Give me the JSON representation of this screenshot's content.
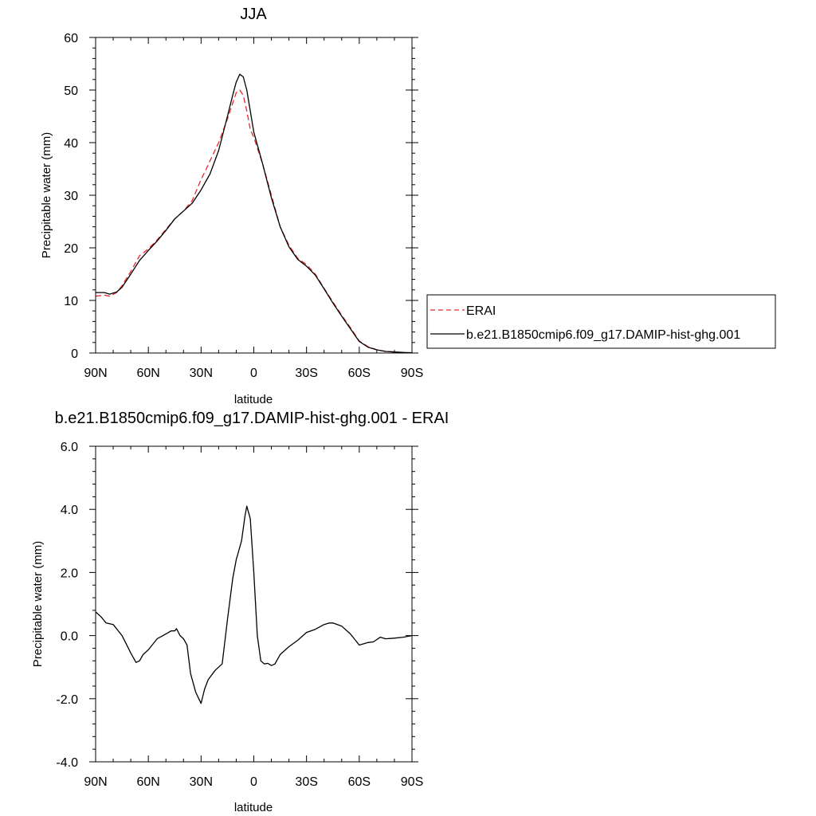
{
  "chart_data": [
    {
      "type": "line",
      "title": "JJA",
      "xlabel": "latitude",
      "ylabel": "Precipitable water (mm)",
      "xlim": [
        90,
        -90
      ],
      "ylim": [
        0,
        60
      ],
      "xticks": [
        90,
        60,
        30,
        0,
        -30,
        -60,
        -90
      ],
      "xtick_labels": [
        "90N",
        "60N",
        "30N",
        "0",
        "30S",
        "60S",
        "90S"
      ],
      "yticks": [
        0,
        10,
        20,
        30,
        40,
        50,
        60
      ],
      "ytick_labels": [
        "0",
        "10",
        "20",
        "30",
        "40",
        "50",
        "60"
      ],
      "legend": "right",
      "series": [
        {
          "name": "ERAI",
          "color": "#e8262b",
          "dash": "dashed",
          "x": [
            90,
            85,
            82,
            78,
            75,
            70,
            65,
            60,
            55,
            50,
            45,
            40,
            35,
            30,
            27,
            25,
            20,
            15,
            12,
            10,
            8,
            6,
            4,
            2,
            0,
            -5,
            -10,
            -15,
            -20,
            -25,
            -30,
            -35,
            -40,
            -45,
            -50,
            -55,
            -60,
            -65,
            -70,
            -75,
            -80,
            -85,
            -90
          ],
          "values": [
            10.8,
            11.0,
            10.8,
            11.5,
            12.8,
            15.5,
            18.5,
            19.8,
            21.5,
            23.5,
            25.5,
            27.0,
            29.0,
            33.0,
            35.0,
            36.5,
            40.0,
            44.5,
            47.5,
            49.5,
            50.0,
            49.0,
            46.0,
            42.5,
            41.0,
            36.0,
            30.0,
            24.0,
            20.5,
            18.0,
            16.8,
            15.0,
            12.3,
            9.7,
            7.2,
            4.8,
            2.3,
            1.2,
            0.6,
            0.3,
            0.2,
            0.1,
            0.05
          ]
        },
        {
          "name": "b.e21.B1850cmip6.f09_g17.DAMIP-hist-ghg.001",
          "color": "#000000",
          "dash": "solid",
          "x": [
            90,
            85,
            82,
            78,
            75,
            70,
            65,
            60,
            55,
            50,
            45,
            40,
            35,
            30,
            27,
            25,
            20,
            15,
            12,
            10,
            8,
            6,
            4,
            2,
            0,
            -5,
            -10,
            -15,
            -20,
            -25,
            -30,
            -35,
            -40,
            -45,
            -50,
            -55,
            -60,
            -65,
            -70,
            -75,
            -80,
            -85,
            -90
          ],
          "values": [
            11.5,
            11.5,
            11.2,
            11.6,
            12.5,
            15.0,
            17.6,
            19.5,
            21.3,
            23.3,
            25.5,
            27.0,
            28.5,
            31.0,
            32.8,
            34.0,
            38.5,
            45.0,
            49.0,
            51.5,
            53.0,
            52.5,
            50.0,
            46.0,
            42.0,
            36.0,
            29.5,
            24.0,
            20.2,
            17.8,
            16.5,
            14.8,
            12.2,
            9.5,
            7.0,
            4.6,
            2.2,
            1.1,
            0.6,
            0.3,
            0.2,
            0.1,
            0.05
          ]
        }
      ]
    },
    {
      "type": "line",
      "title": "b.e21.B1850cmip6.f09_g17.DAMIP-hist-ghg.001 - ERAI",
      "xlabel": "latitude",
      "ylabel": "Precipitable water (mm)",
      "xlim": [
        90,
        -90
      ],
      "ylim": [
        -4,
        6
      ],
      "xticks": [
        90,
        60,
        30,
        0,
        -30,
        -60,
        -90
      ],
      "xtick_labels": [
        "90N",
        "60N",
        "30N",
        "0",
        "30S",
        "60S",
        "90S"
      ],
      "yticks": [
        -4,
        -2,
        0,
        2,
        4,
        6
      ],
      "ytick_labels": [
        "-4.0",
        "-2.0",
        "0.0",
        "2.0",
        "4.0",
        "6.0"
      ],
      "series": [
        {
          "color": "#000000",
          "dash": "solid",
          "x": [
            90,
            87,
            84,
            80,
            75,
            70,
            67,
            65,
            63,
            60,
            55,
            50,
            47,
            45,
            44,
            42,
            40,
            38,
            36,
            33,
            30,
            28,
            26,
            22,
            18,
            15,
            12,
            10,
            7,
            5,
            4,
            2,
            0,
            -2,
            -4,
            -6,
            -8,
            -10,
            -12,
            -15,
            -20,
            -25,
            -30,
            -35,
            -40,
            -43,
            -45,
            -50,
            -55,
            -60,
            -65,
            -68,
            -72,
            -75,
            -80,
            -85,
            -90
          ],
          "values": [
            0.75,
            0.6,
            0.4,
            0.35,
            0.0,
            -0.55,
            -0.85,
            -0.8,
            -0.6,
            -0.45,
            -0.1,
            0.05,
            0.15,
            0.15,
            0.22,
            0.0,
            -0.1,
            -0.3,
            -1.2,
            -1.8,
            -2.15,
            -1.7,
            -1.4,
            -1.1,
            -0.9,
            0.5,
            1.8,
            2.4,
            3.0,
            3.8,
            4.1,
            3.7,
            2.0,
            0.0,
            -0.8,
            -0.9,
            -0.88,
            -0.95,
            -0.9,
            -0.6,
            -0.35,
            -0.15,
            0.1,
            0.2,
            0.35,
            0.4,
            0.4,
            0.3,
            0.05,
            -0.3,
            -0.22,
            -0.2,
            -0.05,
            -0.1,
            -0.08,
            -0.05,
            0.0
          ]
        }
      ]
    }
  ]
}
